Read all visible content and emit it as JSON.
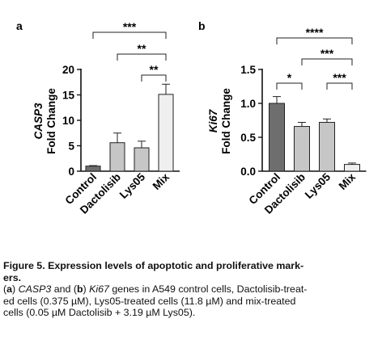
{
  "figure": {
    "caption": {
      "title_lines": [
        "Figure 5. Expression levels of apoptotic and proliferative mark-",
        "ers."
      ],
      "body_lines": [
        [
          {
            "t": "(",
            "s": ""
          },
          {
            "t": "a",
            "s": "b"
          },
          {
            "t": ") ",
            "s": ""
          },
          {
            "t": "CASP3",
            "s": "i"
          },
          {
            "t": " and (",
            "s": ""
          },
          {
            "t": "b",
            "s": "b"
          },
          {
            "t": ") ",
            "s": ""
          },
          {
            "t": "Ki67",
            "s": "i"
          },
          {
            "t": " genes in A549 control cells, Dactolisib-treat-",
            "s": ""
          }
        ],
        [
          {
            "t": "ed cells (0.375 µM), Lys05-treated cells (11.8 µM) and mix-treated",
            "s": ""
          }
        ],
        [
          {
            "t": "cells (0.05 µM Dactolisib + 3.19 µM Lys05).",
            "s": ""
          }
        ]
      ]
    }
  },
  "chart_data": [
    {
      "panel_label": "a",
      "type": "bar",
      "categories": [
        "Control",
        "Dactolisib",
        "Lys05",
        "Mix"
      ],
      "values": [
        1.0,
        5.6,
        4.6,
        15.1
      ],
      "errors": [
        0.1,
        1.9,
        1.3,
        2.0
      ],
      "bar_colors": [
        "#6e6e6e",
        "#c6c6c6",
        "#c6c6c6",
        "#efefef"
      ],
      "ylabel_gene": "CASP3",
      "ylabel_rest": "Fold Change",
      "ylim": [
        0,
        20
      ],
      "yticks": [
        0,
        5,
        10,
        15,
        20
      ],
      "significance": [
        {
          "from": 0,
          "to": 3,
          "label": "***"
        },
        {
          "from": 1,
          "to": 3,
          "label": "**"
        },
        {
          "from": 2,
          "to": 3,
          "label": "**"
        }
      ]
    },
    {
      "panel_label": "b",
      "type": "bar",
      "categories": [
        "Control",
        "Dactolisib",
        "Lys05",
        "Mix"
      ],
      "values": [
        1.0,
        0.66,
        0.72,
        0.1
      ],
      "errors": [
        0.1,
        0.06,
        0.05,
        0.02
      ],
      "bar_colors": [
        "#6e6e6e",
        "#c6c6c6",
        "#c6c6c6",
        "#efefef"
      ],
      "ylabel_gene": "Ki67",
      "ylabel_rest": "Fold Change",
      "ylim": [
        0,
        1.5
      ],
      "yticks": [
        "0.0",
        "0.5",
        "1.0",
        "1.5"
      ],
      "significance": [
        {
          "from": 0,
          "to": 3,
          "label": "****"
        },
        {
          "from": 0,
          "to": 1,
          "label": "*"
        },
        {
          "from": 1,
          "to": 3,
          "label": "***"
        },
        {
          "from": 2,
          "to": 3,
          "label": "***"
        }
      ]
    }
  ]
}
